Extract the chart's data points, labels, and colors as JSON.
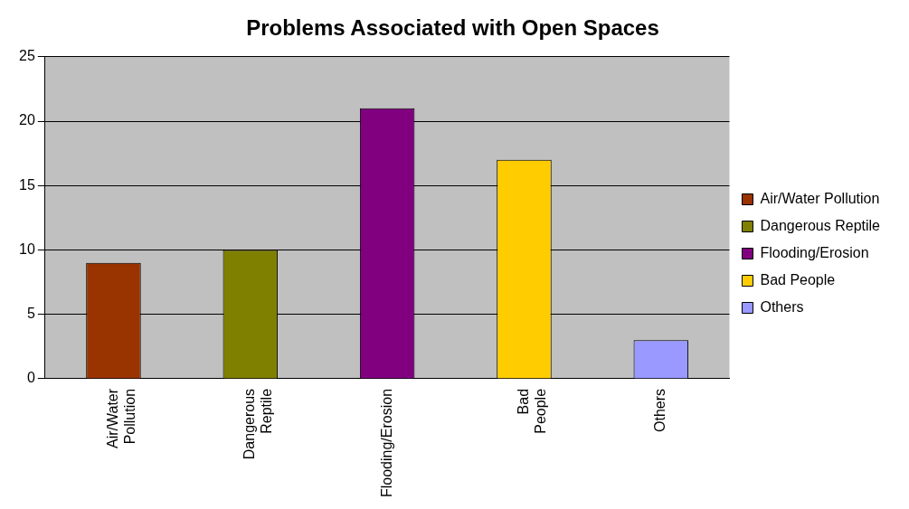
{
  "chart_data": {
    "type": "bar",
    "title": "Problems Associated with Open Spaces",
    "categories": [
      "Air/Water Pollution",
      "Dangerous Reptile",
      "Flooding/Erosion",
      "Bad People",
      "Others"
    ],
    "series": [
      {
        "name": "Air/Water Pollution",
        "color": "#993300",
        "values": [
          9,
          null,
          null,
          null,
          null
        ]
      },
      {
        "name": "Dangerous Reptile",
        "color": "#808000",
        "values": [
          null,
          10,
          null,
          null,
          null
        ]
      },
      {
        "name": "Flooding/Erosion",
        "color": "#800080",
        "values": [
          null,
          null,
          21,
          null,
          null
        ]
      },
      {
        "name": "Bad People",
        "color": "#ffcc00",
        "values": [
          null,
          null,
          null,
          17,
          null
        ]
      },
      {
        "name": "Others",
        "color": "#9999ff",
        "values": [
          null,
          null,
          null,
          null,
          3
        ]
      }
    ],
    "ylim": [
      0,
      25
    ],
    "yticks": [
      0,
      5,
      10,
      15,
      20,
      25
    ],
    "grid": "y",
    "legend": "right"
  }
}
